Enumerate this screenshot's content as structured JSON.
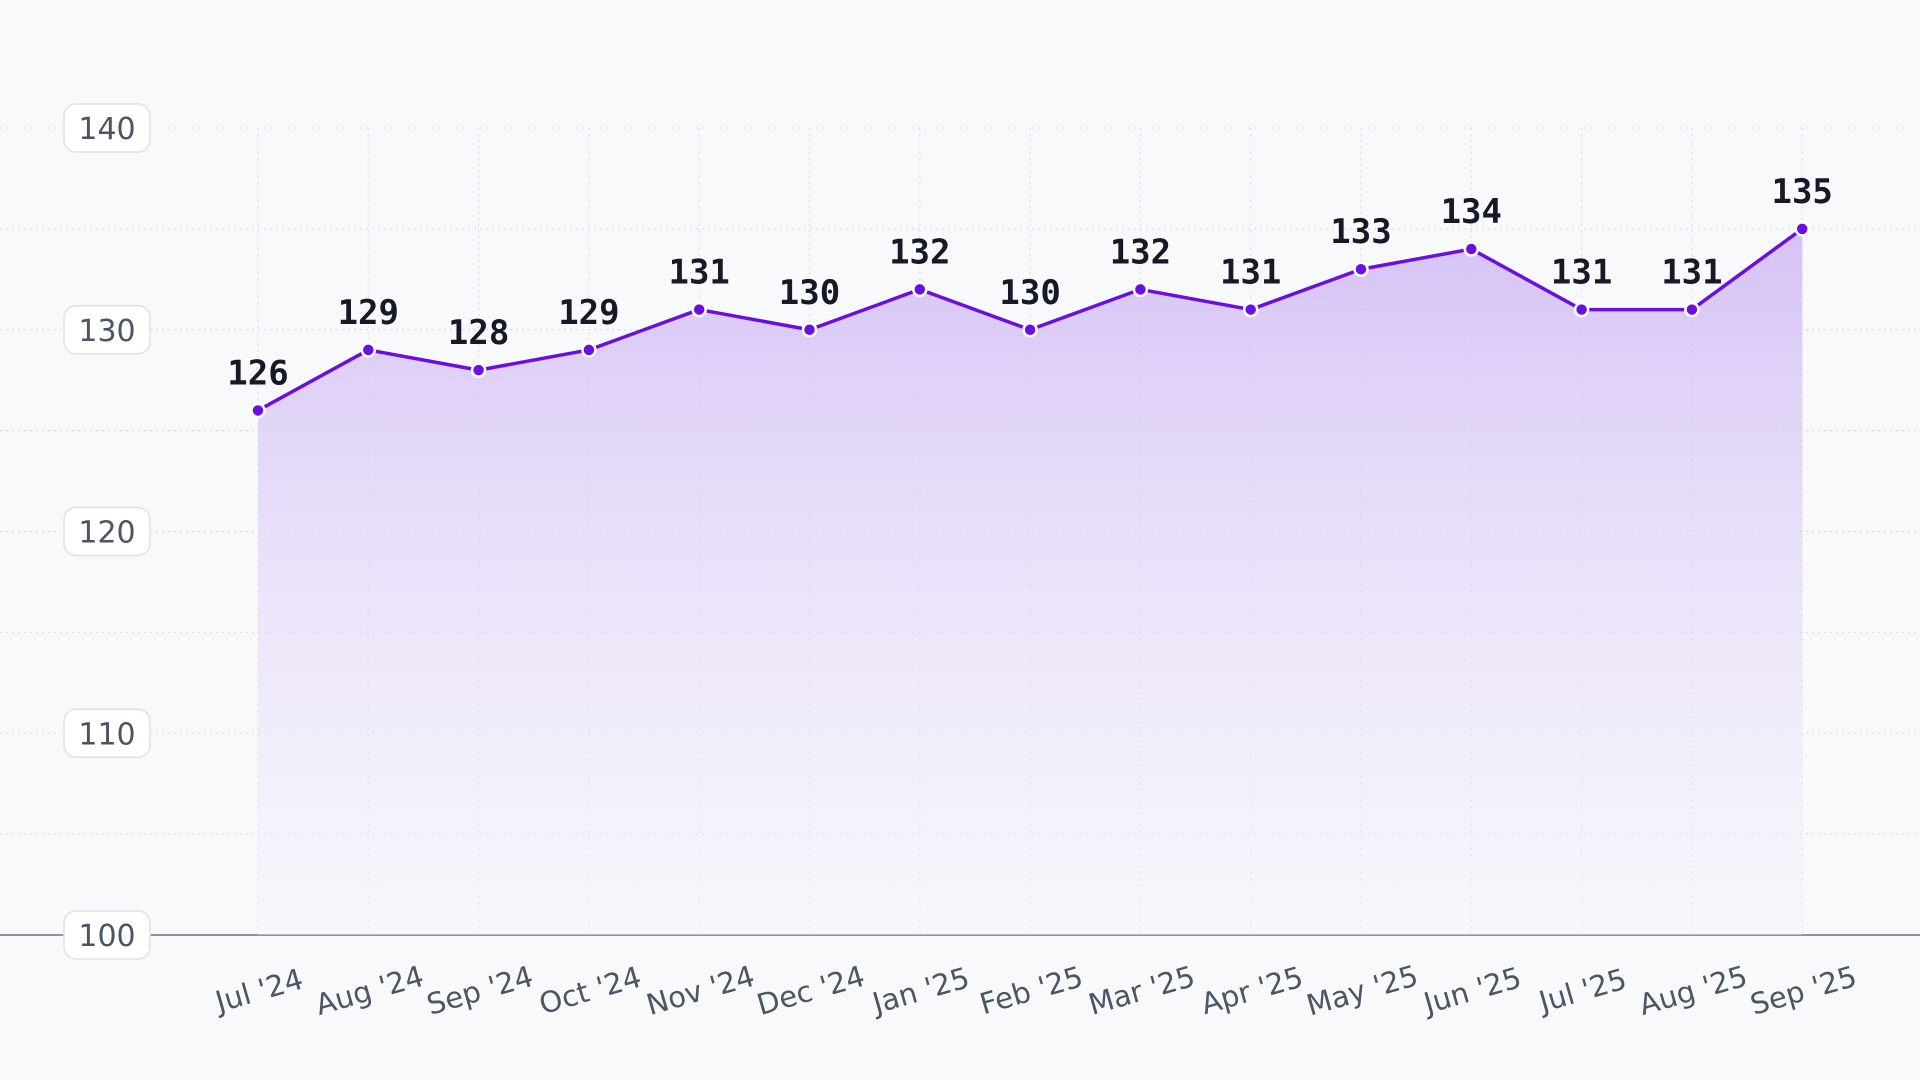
{
  "chart_data": {
    "type": "area",
    "title": "",
    "xlabel": "",
    "ylabel": "",
    "categories": [
      "Jul '24",
      "Aug '24",
      "Sep '24",
      "Oct '24",
      "Nov '24",
      "Dec '24",
      "Jan '25",
      "Feb '25",
      "Mar '25",
      "Apr '25",
      "May '25",
      "Jun '25",
      "Jul '25",
      "Aug '25",
      "Sep '25"
    ],
    "values": [
      126,
      129,
      128,
      129,
      131,
      130,
      132,
      130,
      132,
      131,
      133,
      134,
      131,
      131,
      135
    ],
    "value_labels": [
      "126",
      "129",
      "128",
      "129",
      "131",
      "130",
      "132",
      "130",
      "132",
      "131",
      "133",
      "134",
      "131",
      "131",
      "135"
    ],
    "ylim": [
      100,
      140
    ],
    "yticks": [
      100,
      110,
      120,
      130,
      140
    ],
    "ytick_labels": [
      "100",
      "110",
      "120",
      "130",
      "140"
    ],
    "grid": true,
    "data_labels": true,
    "colors": {
      "line": "#6a0fe0",
      "fill_top": "#cfb8f5",
      "fill_bottom": "#f6f3fc"
    }
  }
}
